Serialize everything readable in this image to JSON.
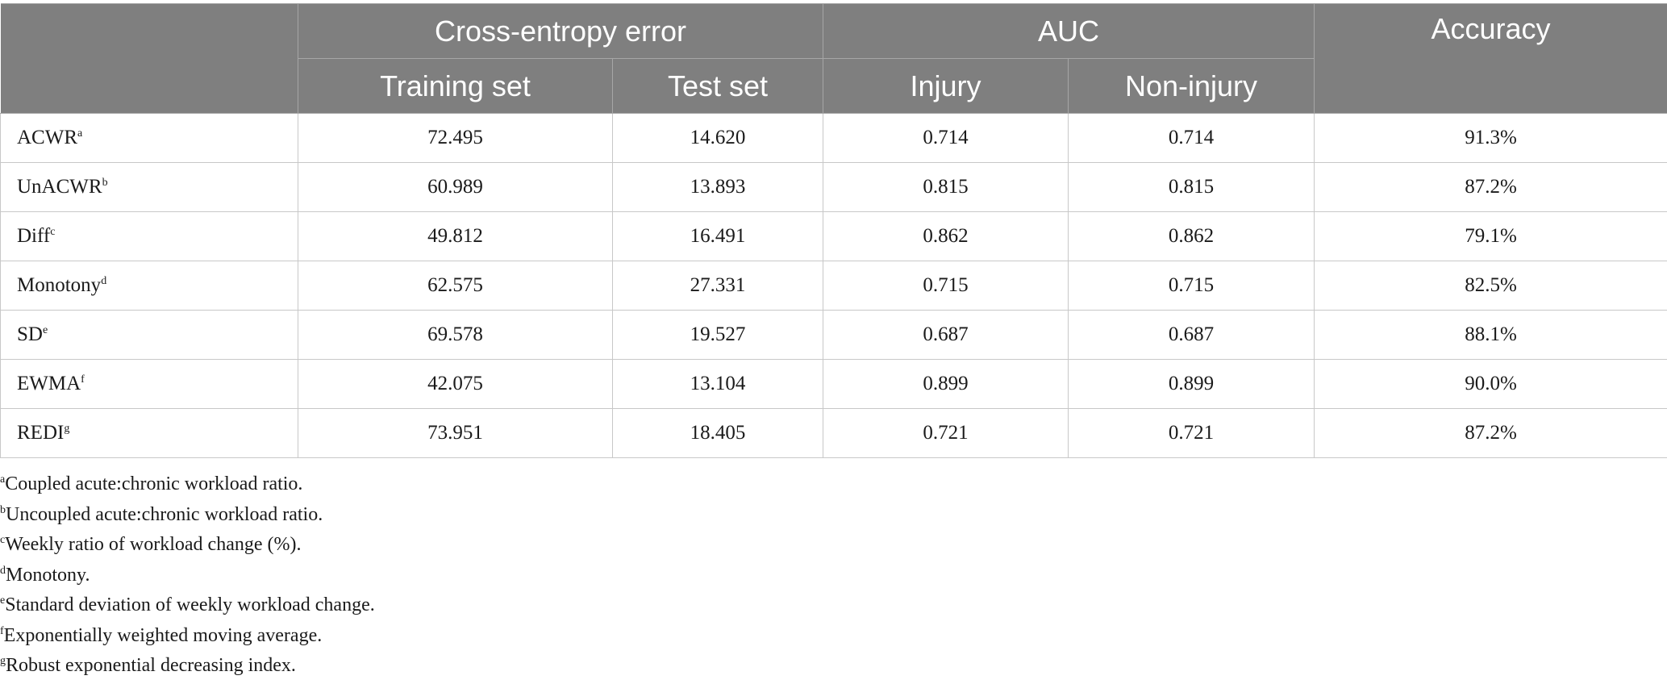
{
  "header": {
    "group_cross_entropy": "Cross-entropy error",
    "group_auc": "AUC",
    "accuracy": "Accuracy",
    "training_set": "Training set",
    "test_set": "Test set",
    "injury": "Injury",
    "non_injury": "Non-injury"
  },
  "rows": [
    {
      "name": "ACWR",
      "sup": "a",
      "training": "72.495",
      "test": "14.620",
      "injury": "0.714",
      "non_injury": "0.714",
      "accuracy": "91.3%"
    },
    {
      "name": "UnACWR",
      "sup": "b",
      "training": "60.989",
      "test": "13.893",
      "injury": "0.815",
      "non_injury": "0.815",
      "accuracy": "87.2%"
    },
    {
      "name": "Diff",
      "sup": "c",
      "training": "49.812",
      "test": "16.491",
      "injury": "0.862",
      "non_injury": "0.862",
      "accuracy": "79.1%"
    },
    {
      "name": "Monotony",
      "sup": "d",
      "training": "62.575",
      "test": "27.331",
      "injury": "0.715",
      "non_injury": "0.715",
      "accuracy": "82.5%"
    },
    {
      "name": "SD",
      "sup": "e",
      "training": "69.578",
      "test": "19.527",
      "injury": "0.687",
      "non_injury": "0.687",
      "accuracy": "88.1%"
    },
    {
      "name": "EWMA",
      "sup": "f",
      "training": "42.075",
      "test": "13.104",
      "injury": "0.899",
      "non_injury": "0.899",
      "accuracy": "90.0%"
    },
    {
      "name": "REDI",
      "sup": "g",
      "training": "73.951",
      "test": "18.405",
      "injury": "0.721",
      "non_injury": "0.721",
      "accuracy": "87.2%"
    }
  ],
  "footnotes": [
    {
      "sup": "a",
      "text": "Coupled acute:chronic workload ratio."
    },
    {
      "sup": "b",
      "text": "Uncoupled acute:chronic workload ratio."
    },
    {
      "sup": "c",
      "text": "Weekly ratio of workload change (%)."
    },
    {
      "sup": "d",
      "text": "Monotony."
    },
    {
      "sup": "e",
      "text": "Standard deviation of weekly workload change."
    },
    {
      "sup": "f",
      "text": "Exponentially weighted moving average."
    },
    {
      "sup": "g",
      "text": "Robust exponential decreasing index."
    }
  ],
  "colors": {
    "header_bg": "#7f7f7f",
    "header_text": "#ffffff",
    "grid": "#c8c8c8"
  }
}
